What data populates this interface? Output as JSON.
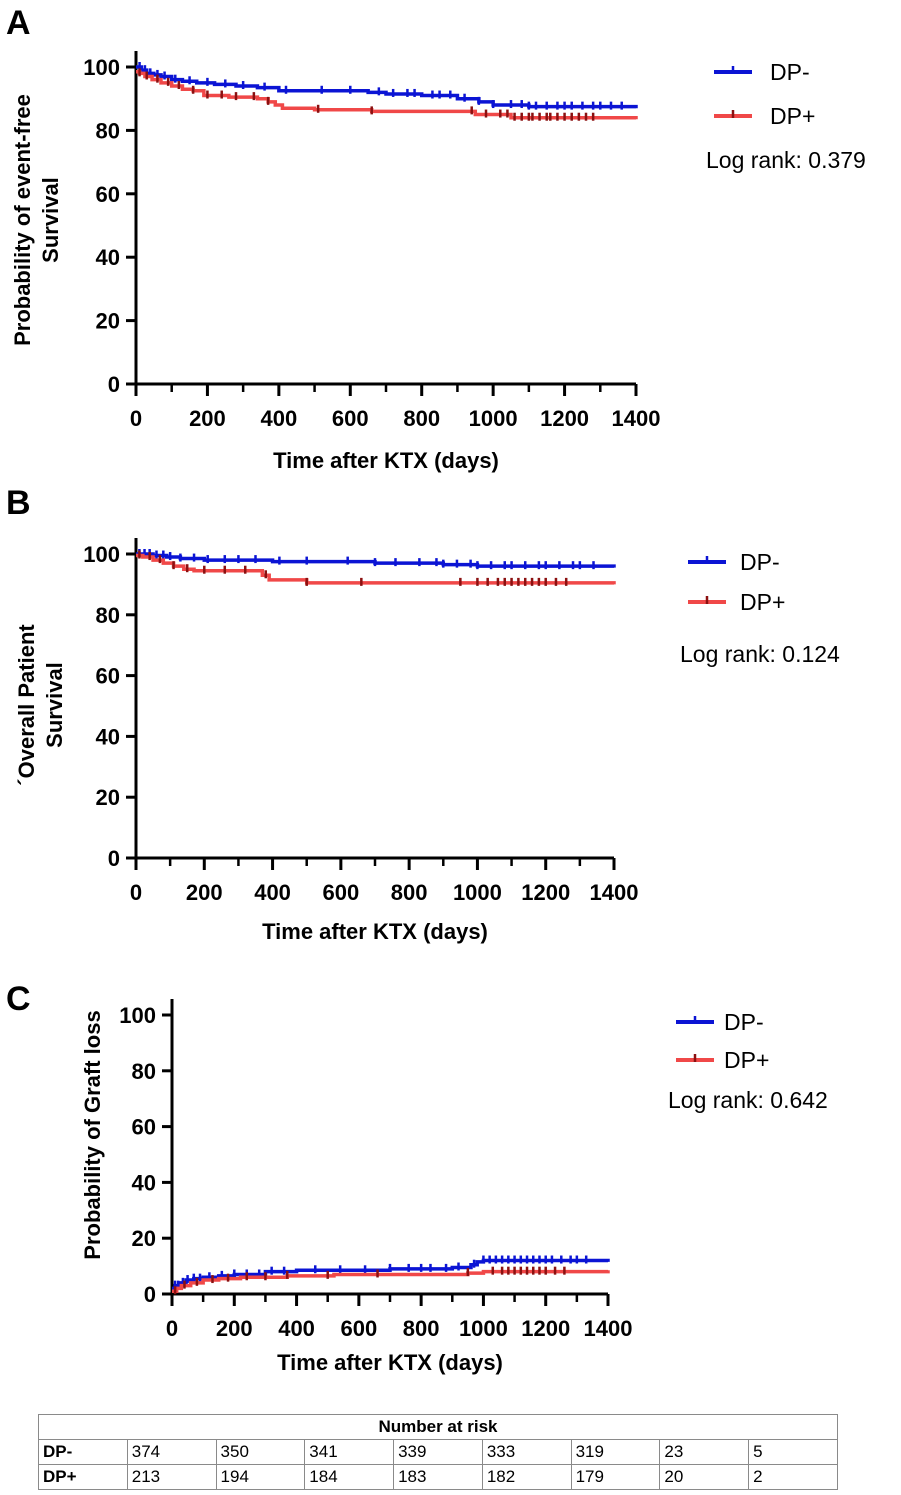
{
  "colors": {
    "dp_minus": "#0b14d4",
    "dp_plus": "#f04848",
    "dp_plus_censor": "#8b1010",
    "axis": "#000000"
  },
  "panels": [
    {
      "letter": "A",
      "ylabel_lines": [
        "Probability of event-free",
        "Survival"
      ],
      "xlabel": "Time after KTX (days)",
      "legend": {
        "dp_minus": "DP-",
        "dp_plus": "DP+"
      },
      "logrank": "Log rank: 0.379"
    },
    {
      "letter": "B",
      "ylabel_lines": [
        "´Overall Patient",
        "Survival"
      ],
      "xlabel": "Time after KTX (days)",
      "legend": {
        "dp_minus": "DP-",
        "dp_plus": "DP+"
      },
      "logrank": "Log rank: 0.124"
    },
    {
      "letter": "C",
      "ylabel_lines": [
        "Probability of Graft loss"
      ],
      "xlabel": "Time after KTX (days)",
      "legend": {
        "dp_minus": "DP-",
        "dp_plus": "DP+"
      },
      "logrank": "Log rank: 0.642"
    }
  ],
  "chart_data": [
    {
      "type": "line",
      "panel": "A",
      "ylabel": "Probability of event-free Survival",
      "xlabel": "Time after KTX (days)",
      "xlim": [
        0,
        1400
      ],
      "ylim": [
        0,
        100
      ],
      "xticks": [
        0,
        200,
        400,
        600,
        800,
        1000,
        1200,
        1400
      ],
      "yticks": [
        0,
        20,
        40,
        60,
        80,
        100
      ],
      "series": [
        {
          "name": "DP-",
          "step": true,
          "x": [
            0,
            15,
            30,
            50,
            70,
            100,
            130,
            170,
            220,
            280,
            340,
            400,
            520,
            650,
            700,
            800,
            900,
            960,
            1000,
            1100,
            1400
          ],
          "y": [
            100,
            99,
            98,
            97.5,
            97,
            96,
            95.5,
            95,
            94.5,
            94,
            93.5,
            92.5,
            92.5,
            92,
            91.5,
            91,
            90,
            89,
            88,
            87.5,
            87
          ],
          "censor_x": [
            10,
            25,
            40,
            60,
            80,
            110,
            150,
            200,
            250,
            300,
            360,
            420,
            520,
            600,
            680,
            720,
            760,
            780,
            830,
            850,
            880,
            920,
            960,
            1000,
            1050,
            1080,
            1100,
            1120,
            1150,
            1180,
            1200,
            1220,
            1250,
            1280,
            1300,
            1330,
            1360
          ]
        },
        {
          "name": "DP+",
          "step": true,
          "x": [
            0,
            10,
            25,
            45,
            70,
            100,
            130,
            160,
            190,
            260,
            340,
            370,
            390,
            410,
            500,
            660,
            950,
            1050,
            1400
          ],
          "y": [
            98.5,
            98,
            97,
            96,
            95,
            94,
            93,
            92.5,
            91,
            90.5,
            90,
            89,
            88,
            87,
            86.5,
            86,
            85,
            84,
            83.5
          ],
          "censor_x": [
            10,
            30,
            60,
            90,
            120,
            160,
            200,
            240,
            280,
            330,
            370,
            510,
            660,
            940,
            980,
            1020,
            1040,
            1060,
            1080,
            1100,
            1110,
            1130,
            1150,
            1160,
            1180,
            1200,
            1220,
            1240,
            1260,
            1280
          ]
        }
      ],
      "legend_position": "right",
      "annotations": [
        "Log rank: 0.379"
      ]
    },
    {
      "type": "line",
      "panel": "B",
      "ylabel": "´Overall Patient Survival",
      "xlabel": "Time after KTX (days)",
      "xlim": [
        0,
        1400
      ],
      "ylim": [
        0,
        100
      ],
      "xticks": [
        0,
        200,
        400,
        600,
        800,
        1000,
        1200,
        1400
      ],
      "yticks": [
        0,
        20,
        40,
        60,
        80,
        100
      ],
      "series": [
        {
          "name": "DP-",
          "step": true,
          "x": [
            0,
            20,
            50,
            90,
            130,
            200,
            400,
            700,
            900,
            1000,
            1400
          ],
          "y": [
            100,
            100,
            99.5,
            99,
            98.5,
            98,
            97.5,
            97,
            96.5,
            96,
            95.5
          ],
          "censor_x": [
            10,
            25,
            40,
            60,
            80,
            100,
            130,
            170,
            210,
            260,
            300,
            350,
            420,
            500,
            620,
            700,
            760,
            830,
            880,
            900,
            940,
            980,
            1000,
            1040,
            1080,
            1100,
            1140,
            1180,
            1200,
            1240,
            1280,
            1300,
            1340
          ]
        },
        {
          "name": "DP+",
          "step": true,
          "x": [
            0,
            20,
            50,
            80,
            110,
            140,
            170,
            370,
            390,
            500,
            1400
          ],
          "y": [
            99.5,
            99,
            98,
            97,
            96,
            95,
            94.5,
            93,
            91.5,
            90.5,
            90
          ],
          "censor_x": [
            10,
            40,
            70,
            110,
            150,
            200,
            260,
            320,
            380,
            500,
            660,
            950,
            1000,
            1030,
            1060,
            1080,
            1100,
            1120,
            1140,
            1160,
            1180,
            1200,
            1230,
            1260
          ]
        }
      ],
      "legend_position": "right",
      "annotations": [
        "Log rank: 0.124"
      ]
    },
    {
      "type": "line",
      "panel": "C",
      "ylabel": "Probability of Graft loss",
      "xlabel": "Time after KTX (days)",
      "xlim": [
        0,
        1400
      ],
      "ylim": [
        0,
        100
      ],
      "xticks": [
        0,
        200,
        400,
        600,
        800,
        1000,
        1200,
        1400
      ],
      "yticks": [
        0,
        20,
        40,
        60,
        80,
        100
      ],
      "series": [
        {
          "name": "DP-",
          "step": true,
          "x": [
            0,
            10,
            25,
            45,
            70,
            100,
            150,
            200,
            300,
            400,
            700,
            900,
            960,
            980,
            1000,
            1400
          ],
          "y": [
            2,
            3,
            4,
            5,
            5.5,
            6,
            6.5,
            7,
            8,
            8.5,
            9,
            9.5,
            10.5,
            11.5,
            12,
            11.5
          ],
          "censor_x": [
            10,
            20,
            35,
            50,
            70,
            90,
            120,
            160,
            200,
            240,
            280,
            320,
            360,
            460,
            540,
            620,
            700,
            760,
            800,
            830,
            880,
            920,
            970,
            1000,
            1020,
            1040,
            1060,
            1080,
            1100,
            1120,
            1140,
            1160,
            1180,
            1200,
            1220,
            1250,
            1280,
            1300,
            1330
          ]
        },
        {
          "name": "DP+",
          "step": true,
          "x": [
            0,
            15,
            30,
            60,
            100,
            150,
            220,
            370,
            520,
            950,
            1000,
            1400
          ],
          "y": [
            1,
            2,
            3,
            4,
            5,
            5.5,
            6,
            6.5,
            7,
            7.5,
            8,
            8.5
          ],
          "censor_x": [
            10,
            40,
            80,
            130,
            180,
            240,
            300,
            370,
            500,
            660,
            950,
            1030,
            1060,
            1080,
            1100,
            1120,
            1140,
            1160,
            1180,
            1200,
            1230,
            1260
          ]
        }
      ],
      "legend_position": "right",
      "annotations": [
        "Log rank: 0.642"
      ]
    }
  ],
  "risk_table": {
    "title": "Number at risk",
    "rows": [
      {
        "label": "DP-",
        "values": [
          "374",
          "350",
          "341",
          "339",
          "333",
          "319",
          "23",
          "5"
        ]
      },
      {
        "label": "DP+",
        "values": [
          "213",
          "194",
          "184",
          "183",
          "182",
          "179",
          "20",
          "2"
        ]
      }
    ]
  }
}
